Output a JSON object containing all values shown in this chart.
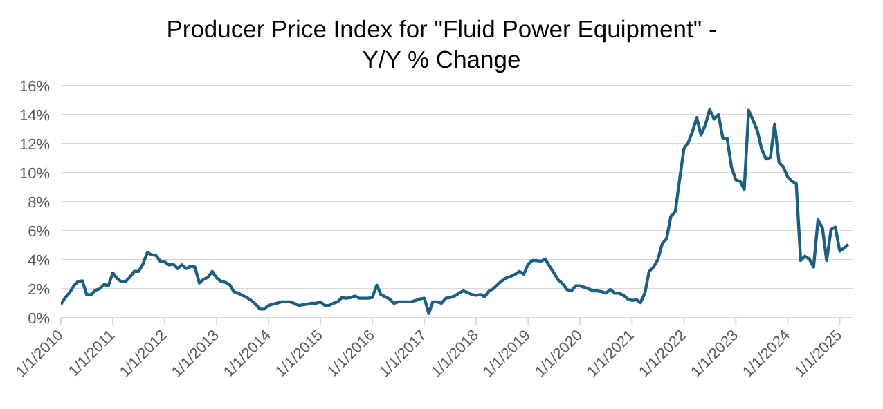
{
  "chart_data": {
    "type": "line",
    "title": "Producer Price Index for \"Fluid Power Equipment\" - Y/Y % Change",
    "x": [
      "2010-01",
      "2010-02",
      "2010-03",
      "2010-04",
      "2010-05",
      "2010-06",
      "2010-07",
      "2010-08",
      "2010-09",
      "2010-10",
      "2010-11",
      "2010-12",
      "2011-01",
      "2011-02",
      "2011-03",
      "2011-04",
      "2011-05",
      "2011-06",
      "2011-07",
      "2011-08",
      "2011-09",
      "2011-10",
      "2011-11",
      "2011-12",
      "2012-01",
      "2012-02",
      "2012-03",
      "2012-04",
      "2012-05",
      "2012-06",
      "2012-07",
      "2012-08",
      "2012-09",
      "2012-10",
      "2012-11",
      "2012-12",
      "2013-01",
      "2013-02",
      "2013-03",
      "2013-04",
      "2013-05",
      "2013-06",
      "2013-07",
      "2013-08",
      "2013-09",
      "2013-10",
      "2013-11",
      "2013-12",
      "2014-01",
      "2014-02",
      "2014-03",
      "2014-04",
      "2014-05",
      "2014-06",
      "2014-07",
      "2014-08",
      "2014-09",
      "2014-10",
      "2014-11",
      "2014-12",
      "2015-01",
      "2015-02",
      "2015-03",
      "2015-04",
      "2015-05",
      "2015-06",
      "2015-07",
      "2015-08",
      "2015-09",
      "2015-10",
      "2015-11",
      "2015-12",
      "2016-01",
      "2016-02",
      "2016-03",
      "2016-04",
      "2016-05",
      "2016-06",
      "2016-07",
      "2016-08",
      "2016-09",
      "2016-10",
      "2016-11",
      "2016-12",
      "2017-01",
      "2017-02",
      "2017-03",
      "2017-04",
      "2017-05",
      "2017-06",
      "2017-07",
      "2017-08",
      "2017-09",
      "2017-10",
      "2017-11",
      "2017-12",
      "2018-01",
      "2018-02",
      "2018-03",
      "2018-04",
      "2018-05",
      "2018-06",
      "2018-07",
      "2018-08",
      "2018-09",
      "2018-10",
      "2018-11",
      "2018-12",
      "2019-01",
      "2019-02",
      "2019-03",
      "2019-04",
      "2019-05",
      "2019-06",
      "2019-07",
      "2019-08",
      "2019-09",
      "2019-10",
      "2019-11",
      "2019-12",
      "2020-01",
      "2020-02",
      "2020-03",
      "2020-04",
      "2020-05",
      "2020-06",
      "2020-07",
      "2020-08",
      "2020-09",
      "2020-10",
      "2020-11",
      "2020-12",
      "2021-01",
      "2021-02",
      "2021-03",
      "2021-04",
      "2021-05",
      "2021-06",
      "2021-07",
      "2021-08",
      "2021-09",
      "2021-10",
      "2021-11",
      "2021-12",
      "2022-01",
      "2022-02",
      "2022-03",
      "2022-04",
      "2022-05",
      "2022-06",
      "2022-07",
      "2022-08",
      "2022-09",
      "2022-10",
      "2022-11",
      "2022-12",
      "2023-01",
      "2023-02",
      "2023-03",
      "2023-04",
      "2023-05",
      "2023-06",
      "2023-07",
      "2023-08",
      "2023-09",
      "2023-10",
      "2023-11",
      "2023-12",
      "2024-01",
      "2024-02",
      "2024-03",
      "2024-04",
      "2024-05",
      "2024-06",
      "2024-07",
      "2024-08",
      "2024-09",
      "2024-10",
      "2024-11",
      "2024-12",
      "2025-01",
      "2025-02",
      "2025-03"
    ],
    "series": [
      {
        "color": "#1c5f80",
        "values": [
          0.93,
          1.4,
          1.7,
          2.2,
          2.5,
          2.55,
          1.6,
          1.6,
          1.9,
          2.0,
          2.3,
          2.2,
          3.1,
          2.7,
          2.5,
          2.5,
          2.8,
          3.2,
          3.2,
          3.7,
          4.5,
          4.35,
          4.3,
          3.9,
          3.85,
          3.65,
          3.7,
          3.4,
          3.65,
          3.4,
          3.55,
          3.5,
          2.4,
          2.65,
          2.8,
          3.2,
          2.75,
          2.5,
          2.45,
          2.3,
          1.8,
          1.7,
          1.55,
          1.4,
          1.2,
          0.95,
          0.6,
          0.6,
          0.85,
          0.95,
          1.0,
          1.1,
          1.1,
          1.1,
          1.0,
          0.85,
          0.9,
          0.95,
          1.0,
          1.0,
          1.1,
          0.85,
          0.85,
          1.0,
          1.1,
          1.4,
          1.35,
          1.4,
          1.5,
          1.35,
          1.35,
          1.35,
          1.4,
          2.25,
          1.6,
          1.45,
          1.3,
          1.0,
          1.1,
          1.1,
          1.1,
          1.1,
          1.2,
          1.3,
          1.35,
          0.3,
          1.1,
          1.1,
          1.0,
          1.35,
          1.4,
          1.5,
          1.7,
          1.85,
          1.75,
          1.6,
          1.55,
          1.6,
          1.45,
          1.85,
          2.0,
          2.3,
          2.55,
          2.75,
          2.85,
          3.0,
          3.2,
          3.0,
          3.7,
          3.95,
          3.95,
          3.9,
          4.05,
          3.55,
          3.1,
          2.6,
          2.35,
          1.95,
          1.85,
          2.2,
          2.2,
          2.1,
          2.0,
          1.85,
          1.85,
          1.8,
          1.7,
          1.95,
          1.7,
          1.7,
          1.55,
          1.3,
          1.2,
          1.25,
          1.05,
          1.7,
          3.2,
          3.5,
          4.0,
          5.1,
          5.45,
          7.0,
          7.3,
          9.5,
          11.65,
          12.1,
          12.8,
          13.8,
          12.6,
          13.3,
          14.35,
          13.7,
          14.0,
          12.4,
          12.35,
          10.4,
          9.5,
          9.4,
          8.85,
          14.3,
          13.65,
          12.9,
          11.65,
          10.95,
          11.05,
          13.35,
          10.7,
          10.4,
          9.7,
          9.4,
          9.25,
          3.95,
          4.25,
          4.05,
          3.5,
          6.75,
          6.2,
          3.95,
          6.1,
          6.25,
          4.6,
          4.8,
          5.05
        ]
      }
    ],
    "xlim": [
      "2010-01",
      "2025-04"
    ],
    "xticks": [
      {
        "value": "2010-01-01",
        "label": "1/1/2010"
      },
      {
        "value": "2011-01-01",
        "label": "1/1/2011"
      },
      {
        "value": "2012-01-01",
        "label": "1/1/2012"
      },
      {
        "value": "2013-01-01",
        "label": "1/1/2013"
      },
      {
        "value": "2014-01-01",
        "label": "1/1/2014"
      },
      {
        "value": "2015-01-01",
        "label": "1/1/2015"
      },
      {
        "value": "2016-01-01",
        "label": "1/1/2016"
      },
      {
        "value": "2017-01-01",
        "label": "1/1/2017"
      },
      {
        "value": "2018-01-01",
        "label": "1/1/2018"
      },
      {
        "value": "2019-01-01",
        "label": "1/1/2019"
      },
      {
        "value": "2020-01-01",
        "label": "1/1/2020"
      },
      {
        "value": "2021-01-01",
        "label": "1/1/2021"
      },
      {
        "value": "2022-01-01",
        "label": "1/1/2022"
      },
      {
        "value": "2023-01-01",
        "label": "1/1/2023"
      },
      {
        "value": "2024-01-01",
        "label": "1/1/2024"
      },
      {
        "value": "2025-01-01",
        "label": "1/1/2025"
      }
    ],
    "ylim": [
      0,
      16
    ],
    "yticks": [
      {
        "value": 0,
        "label": "0%"
      },
      {
        "value": 2,
        "label": "2%"
      },
      {
        "value": 4,
        "label": "4%"
      },
      {
        "value": 6,
        "label": "6%"
      },
      {
        "value": 8,
        "label": "8%"
      },
      {
        "value": 10,
        "label": "10%"
      },
      {
        "value": 12,
        "label": "12%"
      },
      {
        "value": 14,
        "label": "14%"
      },
      {
        "value": 16,
        "label": "16%"
      }
    ],
    "grid": "y",
    "legend": false
  }
}
